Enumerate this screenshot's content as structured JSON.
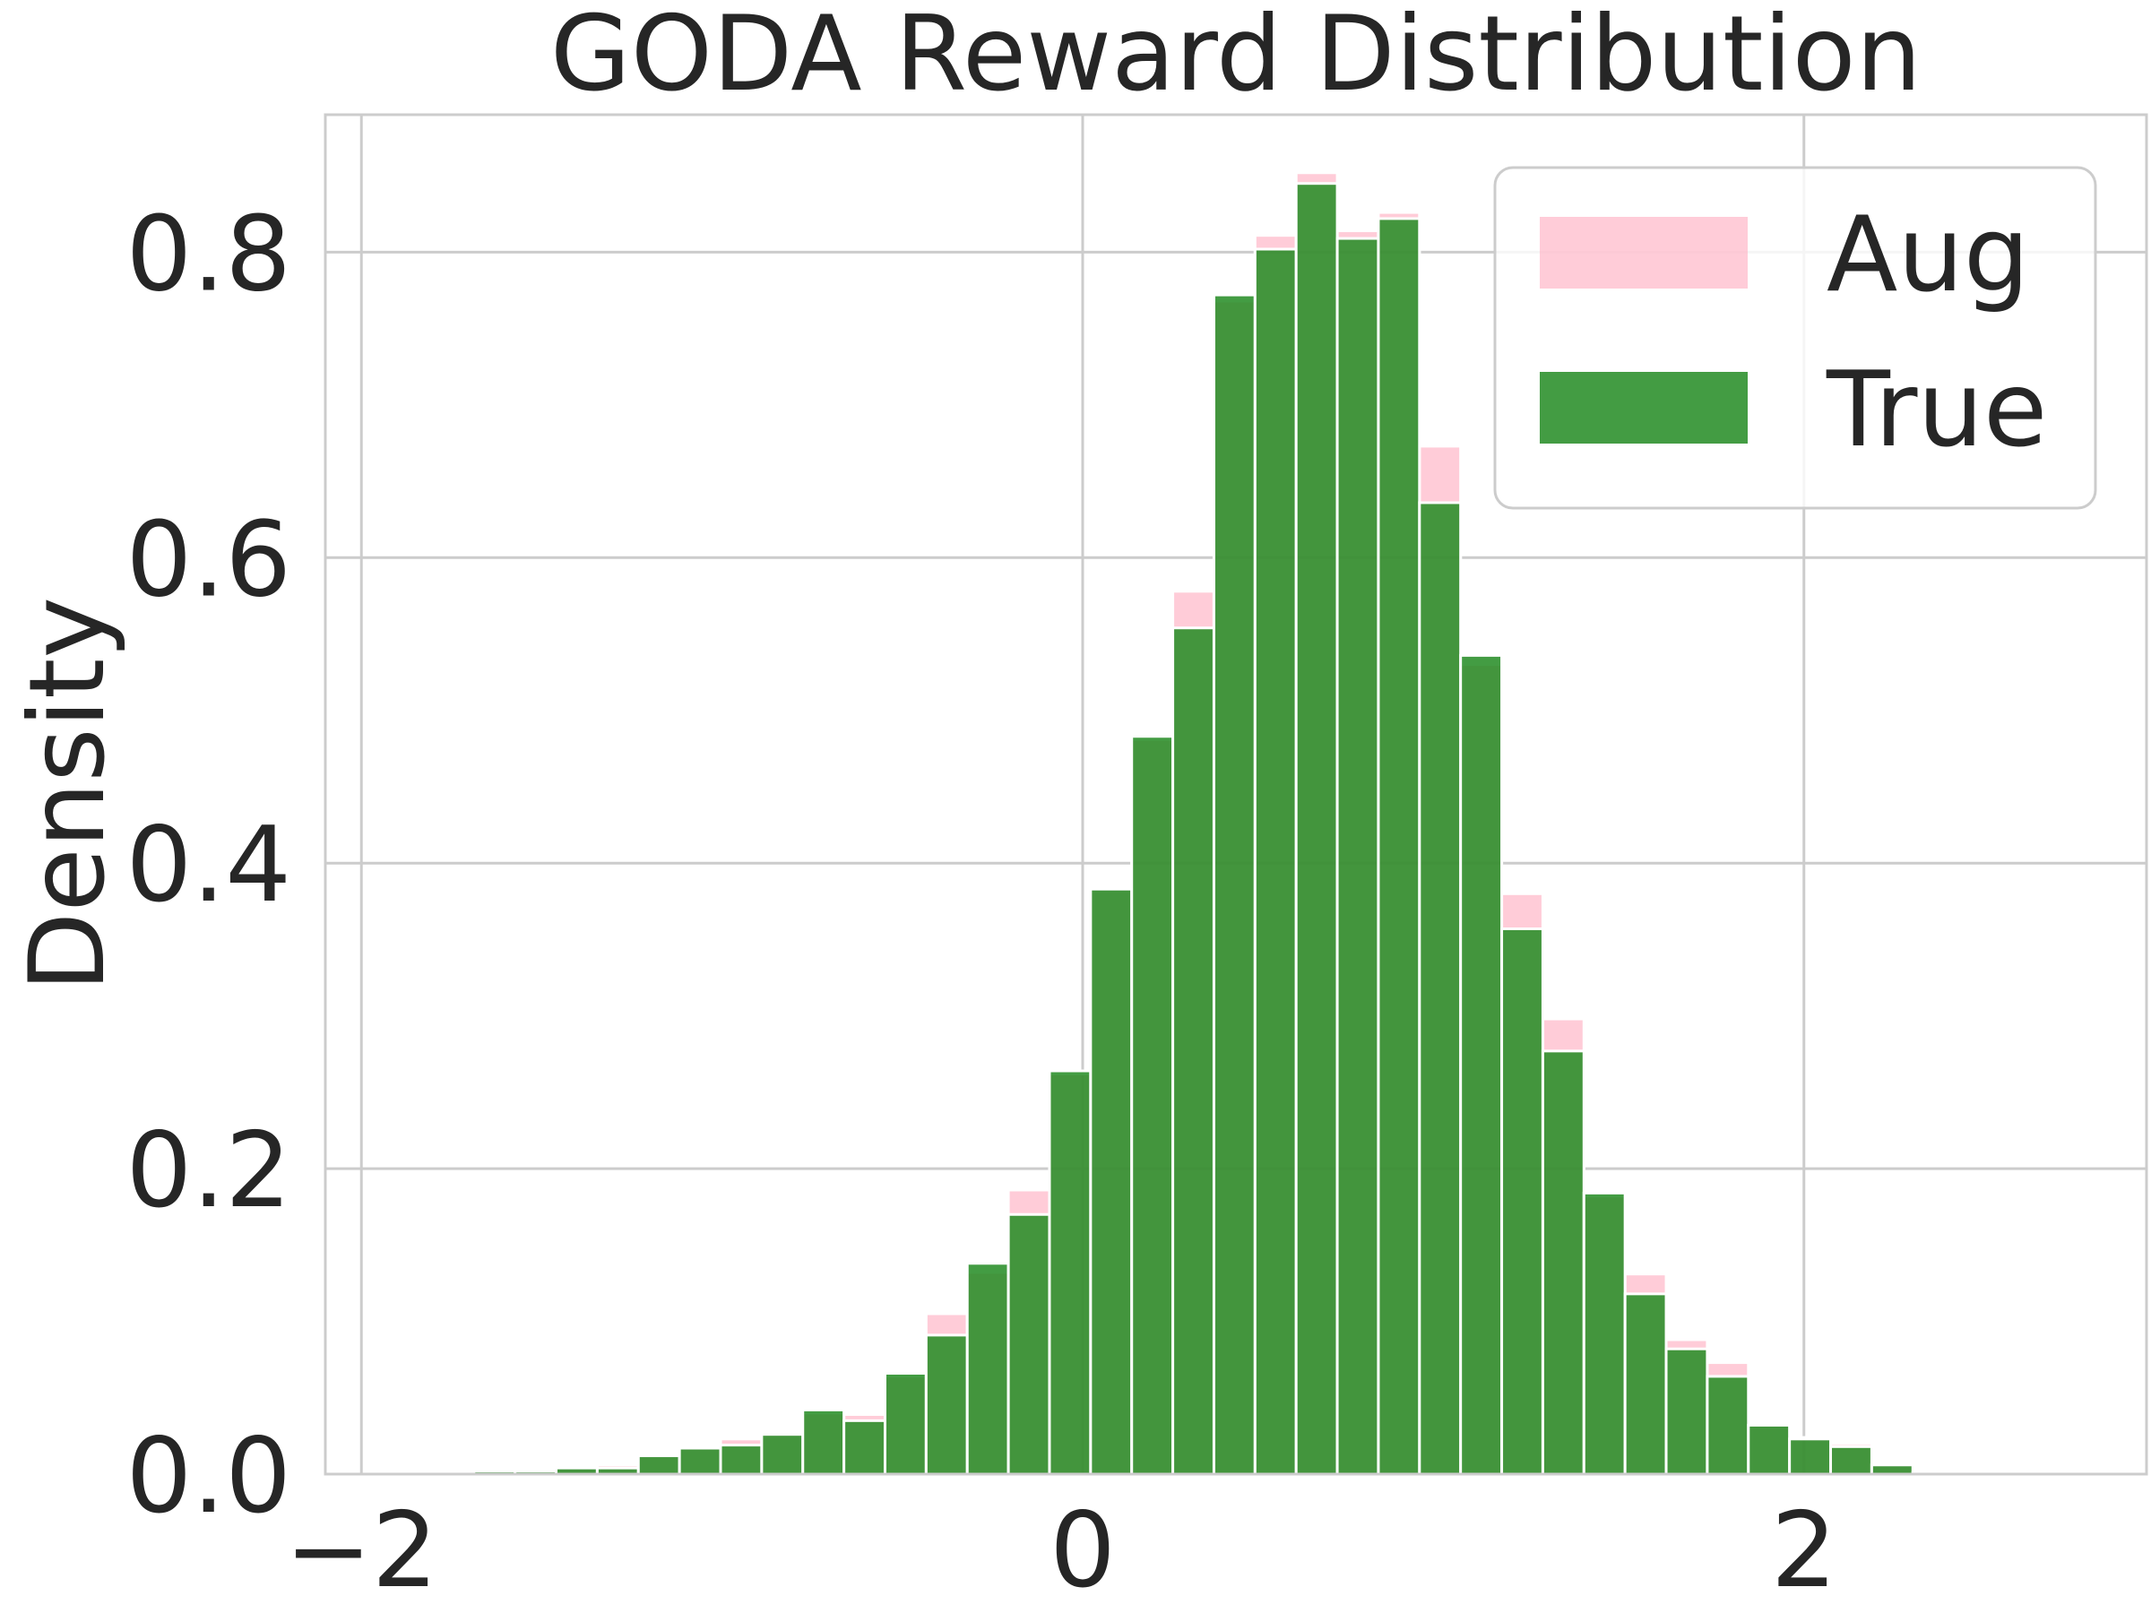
{
  "chart_data": {
    "type": "bar",
    "title": "GODA Reward Distribution",
    "xlabel": "",
    "ylabel": "Density",
    "xlim": [
      -2.1,
      2.95
    ],
    "ylim": [
      0,
      0.89
    ],
    "x_ticks": [
      -2,
      0,
      2
    ],
    "x_tick_labels": [
      "−2",
      "0",
      "2"
    ],
    "y_ticks": [
      0.0,
      0.2,
      0.4,
      0.6,
      0.8
    ],
    "y_tick_labels": [
      "0.0",
      "0.2",
      "0.4",
      "0.6",
      "0.8"
    ],
    "grid": true,
    "legend_position": "top-right",
    "bin_width": 0.114,
    "bin_centers": [
      -1.631,
      -1.517,
      -1.403,
      -1.289,
      -1.175,
      -1.061,
      -0.947,
      -0.833,
      -0.719,
      -0.605,
      -0.491,
      -0.377,
      -0.263,
      -0.149,
      -0.035,
      0.079,
      0.193,
      0.307,
      0.421,
      0.535,
      0.649,
      0.763,
      0.877,
      0.991,
      1.105,
      1.219,
      1.333,
      1.447,
      1.561,
      1.675,
      1.789,
      1.903,
      2.017,
      2.131,
      2.245,
      2.359,
      2.473,
      2.587,
      2.701
    ],
    "series": [
      {
        "name": "Aug",
        "color": "#ffb6c8",
        "opacity": 0.7,
        "values": [
          0.002,
          0.003,
          0.004,
          0.006,
          0.013,
          0.018,
          0.023,
          0.027,
          0.04,
          0.039,
          0.064,
          0.105,
          0.132,
          0.186,
          0.262,
          0.383,
          0.481,
          0.578,
          0.768,
          0.811,
          0.852,
          0.814,
          0.826,
          0.673,
          0.53,
          0.38,
          0.298,
          0.182,
          0.131,
          0.088,
          0.073,
          0.033,
          0.024,
          0.02,
          0.006,
          0.001,
          0.0,
          0.0,
          0.0
        ]
      },
      {
        "name": "True",
        "color": "#228b22",
        "opacity": 0.85,
        "values": [
          0.002,
          0.002,
          0.004,
          0.004,
          0.012,
          0.017,
          0.019,
          0.026,
          0.042,
          0.035,
          0.066,
          0.091,
          0.138,
          0.17,
          0.264,
          0.383,
          0.483,
          0.554,
          0.772,
          0.802,
          0.845,
          0.809,
          0.822,
          0.636,
          0.536,
          0.357,
          0.277,
          0.184,
          0.118,
          0.082,
          0.064,
          0.032,
          0.023,
          0.018,
          0.006,
          0.001,
          0.0,
          0.0,
          0.0
        ]
      }
    ]
  }
}
